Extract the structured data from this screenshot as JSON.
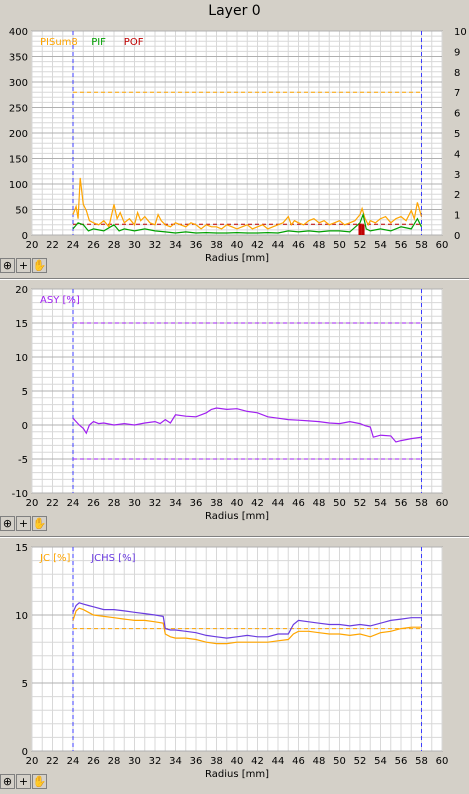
{
  "window": {
    "title": "Layer 0"
  },
  "toolbar": {
    "icons": [
      "zoom-icon",
      "crosshair-icon",
      "hand-pan-icon"
    ]
  },
  "chart_data": [
    {
      "type": "line",
      "xlabel": "Radius [mm]",
      "xlim": [
        20,
        60
      ],
      "xticks": [
        20,
        22,
        24,
        26,
        28,
        30,
        32,
        34,
        36,
        38,
        40,
        42,
        44,
        46,
        48,
        50,
        52,
        54,
        56,
        58,
        60
      ],
      "ylim": [
        0,
        400
      ],
      "yticks": [
        0,
        50,
        100,
        150,
        200,
        250,
        300,
        350,
        400
      ],
      "y2lim": [
        0,
        10
      ],
      "y2ticks": [
        0,
        1,
        2,
        3,
        4,
        5,
        6,
        7,
        8,
        9,
        10
      ],
      "grid": true,
      "legend": "top-left",
      "vlines": [
        24,
        58
      ],
      "series": [
        {
          "name": "PISum8",
          "color": "#ffa500",
          "axis": "y2",
          "kind": "line",
          "x": [
            24.0,
            24.3,
            24.5,
            24.7,
            25.0,
            25.3,
            25.6,
            26.0,
            26.5,
            27.0,
            27.5,
            28.0,
            28.3,
            28.6,
            29.0,
            29.5,
            30.0,
            30.3,
            30.6,
            31.0,
            31.5,
            32.0,
            32.3,
            32.6,
            33.0,
            33.5,
            34.0,
            34.5,
            35.0,
            35.5,
            36.0,
            36.5,
            37.0,
            37.5,
            38.0,
            38.5,
            39.0,
            39.5,
            40.0,
            40.5,
            41.0,
            41.5,
            42.0,
            42.5,
            43.0,
            43.5,
            44.0,
            44.5,
            45.0,
            45.3,
            45.6,
            46.0,
            46.5,
            47.0,
            47.5,
            48.0,
            48.5,
            49.0,
            49.5,
            50.0,
            50.5,
            51.0,
            51.5,
            52.0,
            52.2,
            52.5,
            52.8,
            53.0,
            53.5,
            54.0,
            54.5,
            55.0,
            55.5,
            56.0,
            56.5,
            57.0,
            57.3,
            57.6,
            58.0
          ],
          "y": [
            1.0,
            1.4,
            0.8,
            2.8,
            1.5,
            1.2,
            0.7,
            0.6,
            0.5,
            0.7,
            0.4,
            1.5,
            0.8,
            1.1,
            0.6,
            0.8,
            0.5,
            1.1,
            0.7,
            0.9,
            0.6,
            0.5,
            1.0,
            0.7,
            0.5,
            0.4,
            0.6,
            0.5,
            0.4,
            0.6,
            0.5,
            0.3,
            0.5,
            0.4,
            0.4,
            0.3,
            0.5,
            0.4,
            0.3,
            0.4,
            0.5,
            0.3,
            0.4,
            0.5,
            0.3,
            0.4,
            0.5,
            0.6,
            0.9,
            0.5,
            0.7,
            0.6,
            0.5,
            0.7,
            0.8,
            0.6,
            0.7,
            0.5,
            0.6,
            0.7,
            0.5,
            0.6,
            0.7,
            1.0,
            1.3,
            0.8,
            0.5,
            0.7,
            0.6,
            0.8,
            0.9,
            0.6,
            0.8,
            0.9,
            0.7,
            1.2,
            0.8,
            1.6,
            0.9
          ]
        },
        {
          "name": "PIF",
          "color": "#00a000",
          "axis": "y2",
          "kind": "line",
          "x": [
            24.0,
            24.5,
            25.0,
            25.5,
            26.0,
            27.0,
            28.0,
            28.5,
            29.0,
            30.0,
            31.0,
            32.0,
            33.0,
            34.0,
            35.0,
            36.0,
            37.0,
            38.0,
            39.0,
            40.0,
            41.0,
            42.0,
            43.0,
            44.0,
            45.0,
            46.0,
            47.0,
            48.0,
            49.0,
            50.0,
            51.0,
            52.0,
            52.3,
            52.6,
            53.0,
            54.0,
            55.0,
            56.0,
            57.0,
            57.6,
            58.0
          ],
          "y": [
            0.3,
            0.6,
            0.5,
            0.2,
            0.3,
            0.2,
            0.5,
            0.2,
            0.3,
            0.2,
            0.3,
            0.2,
            0.15,
            0.1,
            0.15,
            0.1,
            0.12,
            0.1,
            0.1,
            0.12,
            0.1,
            0.1,
            0.12,
            0.1,
            0.2,
            0.15,
            0.2,
            0.15,
            0.2,
            0.2,
            0.15,
            0.6,
            1.0,
            0.3,
            0.2,
            0.3,
            0.2,
            0.4,
            0.3,
            0.8,
            0.4
          ]
        },
        {
          "name": "POF",
          "color": "#c00000",
          "axis": "y",
          "kind": "bars",
          "x": [
            52.0,
            52.3
          ],
          "y": [
            22,
            20
          ]
        }
      ],
      "hlines": [
        {
          "value": 280,
          "color": "#ffa500",
          "from": 24,
          "to": 58
        },
        {
          "value": 21,
          "color": "#c00000",
          "from": 24,
          "to": 58
        }
      ]
    },
    {
      "type": "line",
      "xlabel": "Radius [mm]",
      "xlim": [
        20,
        60
      ],
      "xticks": [
        20,
        22,
        24,
        26,
        28,
        30,
        32,
        34,
        36,
        38,
        40,
        42,
        44,
        46,
        48,
        50,
        52,
        54,
        56,
        58,
        60
      ],
      "ylim": [
        -10,
        20
      ],
      "yticks": [
        -10,
        -5,
        0,
        5,
        10,
        15,
        20
      ],
      "grid": true,
      "legend": "top-left",
      "vlines": [
        24,
        58
      ],
      "series": [
        {
          "name": "ASY [%]",
          "color": "#a020f0",
          "x": [
            24.0,
            24.3,
            24.6,
            25.0,
            25.3,
            25.6,
            26.0,
            26.5,
            27.0,
            28.0,
            29.0,
            30.0,
            31.0,
            32.0,
            32.5,
            33.0,
            33.5,
            34.0,
            35.0,
            36.0,
            37.0,
            37.5,
            38.0,
            39.0,
            40.0,
            41.0,
            42.0,
            43.0,
            44.0,
            45.0,
            46.0,
            47.0,
            48.0,
            49.0,
            50.0,
            51.0,
            52.0,
            52.5,
            53.0,
            53.3,
            54.0,
            55.0,
            55.5,
            56.0,
            57.0,
            58.0
          ],
          "y": [
            1.0,
            0.5,
            0.0,
            -0.5,
            -1.2,
            0.0,
            0.5,
            0.2,
            0.3,
            0.0,
            0.2,
            0.0,
            0.3,
            0.5,
            0.2,
            0.8,
            0.3,
            1.5,
            1.3,
            1.2,
            1.8,
            2.3,
            2.5,
            2.3,
            2.4,
            2.0,
            1.8,
            1.2,
            1.0,
            0.8,
            0.7,
            0.6,
            0.5,
            0.3,
            0.2,
            0.5,
            0.2,
            -0.1,
            -0.3,
            -1.8,
            -1.5,
            -1.6,
            -2.5,
            -2.3,
            -2.0,
            -1.8
          ]
        }
      ],
      "hlines": [
        {
          "value": 15,
          "color": "#a020f0",
          "from": 24,
          "to": 58
        },
        {
          "value": -5,
          "color": "#a020f0",
          "from": 24,
          "to": 58
        }
      ]
    },
    {
      "type": "line",
      "xlabel": "Radius [mm]",
      "xlim": [
        20,
        60
      ],
      "xticks": [
        20,
        22,
        24,
        26,
        28,
        30,
        32,
        34,
        36,
        38,
        40,
        42,
        44,
        46,
        48,
        50,
        52,
        54,
        56,
        58,
        60
      ],
      "ylim": [
        0,
        15
      ],
      "yticks": [
        0,
        5,
        10,
        15
      ],
      "grid": true,
      "legend": "top-left",
      "vlines": [
        24,
        58
      ],
      "series": [
        {
          "name": "JC [%]",
          "color": "#ffa500",
          "x": [
            24.0,
            24.3,
            24.6,
            25.0,
            25.5,
            26.0,
            27.0,
            28.0,
            29.0,
            30.0,
            31.0,
            32.0,
            32.8,
            33.0,
            33.5,
            34.0,
            35.0,
            36.0,
            37.0,
            38.0,
            39.0,
            40.0,
            41.0,
            42.0,
            43.0,
            44.0,
            45.0,
            45.5,
            46.0,
            47.0,
            48.0,
            49.0,
            50.0,
            51.0,
            52.0,
            53.0,
            54.0,
            55.0,
            56.0,
            57.0,
            58.0
          ],
          "y": [
            9.6,
            10.3,
            10.5,
            10.4,
            10.2,
            10.0,
            9.9,
            9.8,
            9.7,
            9.6,
            9.6,
            9.5,
            9.4,
            8.6,
            8.4,
            8.3,
            8.3,
            8.2,
            8.0,
            7.9,
            7.9,
            8.0,
            8.0,
            8.0,
            8.0,
            8.1,
            8.2,
            8.6,
            8.8,
            8.8,
            8.7,
            8.6,
            8.6,
            8.5,
            8.6,
            8.4,
            8.7,
            8.8,
            9.0,
            9.1,
            9.1
          ]
        },
        {
          "name": "JCHS [%]",
          "color": "#6a3ce0",
          "x": [
            24.0,
            24.3,
            24.6,
            25.0,
            25.5,
            26.0,
            27.0,
            28.0,
            29.0,
            30.0,
            31.0,
            32.0,
            32.8,
            33.0,
            33.5,
            34.0,
            35.0,
            36.0,
            37.0,
            38.0,
            39.0,
            40.0,
            41.0,
            42.0,
            43.0,
            44.0,
            45.0,
            45.5,
            46.0,
            47.0,
            48.0,
            49.0,
            50.0,
            51.0,
            52.0,
            53.0,
            54.0,
            55.0,
            56.0,
            57.0,
            58.0
          ],
          "y": [
            10.2,
            10.7,
            10.9,
            10.8,
            10.7,
            10.6,
            10.4,
            10.4,
            10.3,
            10.2,
            10.1,
            10.0,
            9.9,
            9.0,
            8.9,
            8.9,
            8.8,
            8.7,
            8.5,
            8.4,
            8.3,
            8.4,
            8.5,
            8.4,
            8.4,
            8.6,
            8.6,
            9.3,
            9.6,
            9.5,
            9.4,
            9.3,
            9.3,
            9.2,
            9.3,
            9.2,
            9.4,
            9.6,
            9.7,
            9.8,
            9.8
          ]
        }
      ],
      "hlines": [
        {
          "value": 9.0,
          "color": "#ffa500",
          "from": 24,
          "to": 58
        }
      ]
    }
  ]
}
